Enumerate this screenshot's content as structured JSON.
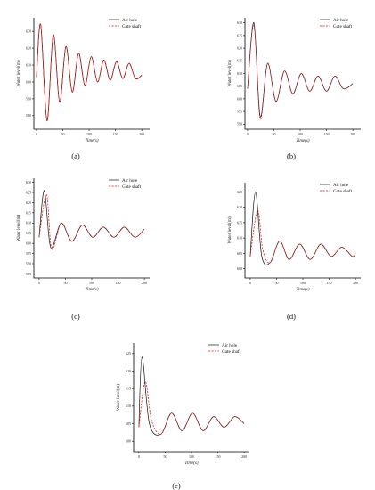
{
  "chart_data": [
    {
      "type": "line",
      "panel_label": "(a)",
      "xlabel": "Time(s)",
      "ylabel": "Water level(m)",
      "xlim": [
        -5,
        215
      ],
      "ylim": [
        572,
        638
      ],
      "xticks": [
        0,
        50,
        100,
        150,
        200
      ],
      "yticks": [
        580,
        590,
        600,
        610,
        620,
        630
      ],
      "legend_position": "top-right",
      "series": [
        {
          "name": "Air hole",
          "style": "solid",
          "color": "#111111",
          "x": [
            0,
            8,
            20,
            32,
            44,
            56,
            68,
            80,
            92,
            104,
            116,
            128,
            140,
            152,
            164,
            176,
            188,
            200
          ],
          "y": [
            603,
            634,
            577,
            628,
            588,
            621,
            594,
            617,
            598,
            615,
            600,
            613,
            601,
            612,
            602,
            611,
            602,
            604
          ]
        },
        {
          "name": "Gate shaft",
          "style": "dashed",
          "color": "#d42020",
          "x": [
            0,
            8,
            20,
            32,
            44,
            56,
            68,
            80,
            92,
            104,
            116,
            128,
            140,
            152,
            164,
            176,
            188,
            200
          ],
          "y": [
            603,
            634,
            577,
            628,
            588,
            621,
            594,
            617,
            598,
            615,
            600,
            613,
            601,
            612,
            602,
            611,
            602,
            604
          ]
        }
      ]
    },
    {
      "type": "line",
      "panel_label": "(b)",
      "xlabel": "Time(s)",
      "ylabel": "Water level(m)",
      "xlim": [
        -5,
        215
      ],
      "ylim": [
        588,
        632
      ],
      "xticks": [
        0,
        50,
        100,
        150,
        200
      ],
      "yticks": [
        590,
        595,
        600,
        605,
        610,
        615,
        620,
        625,
        630
      ],
      "legend_position": "top-right",
      "series": [
        {
          "name": "Air hole",
          "style": "solid",
          "color": "#111111",
          "x": [
            0,
            12,
            24,
            38,
            54,
            70,
            86,
            102,
            118,
            134,
            150,
            166,
            182,
            200
          ],
          "y": [
            604,
            630,
            593,
            614,
            599,
            611,
            602,
            610,
            603,
            609,
            603,
            609,
            604,
            606
          ]
        },
        {
          "name": "Gate shaft",
          "style": "dashed",
          "color": "#d42020",
          "x": [
            0,
            12,
            24,
            38,
            54,
            70,
            86,
            102,
            118,
            134,
            150,
            166,
            182,
            200
          ],
          "y": [
            604,
            629,
            592,
            614,
            599,
            611,
            602,
            610,
            603,
            609,
            603,
            609,
            604,
            606
          ]
        }
      ]
    },
    {
      "type": "line",
      "panel_label": "(c)",
      "xlabel": "Time(s)",
      "ylabel": "Water level(m)",
      "xlim": [
        -10,
        210
      ],
      "ylim": [
        583,
        632
      ],
      "xticks": [
        0,
        50,
        100,
        150,
        200
      ],
      "yticks": [
        585,
        590,
        595,
        600,
        605,
        610,
        615,
        620,
        625,
        630
      ],
      "legend_position": "top-right",
      "series": [
        {
          "name": "Air hole",
          "style": "solid",
          "color": "#111111",
          "x": [
            0,
            10,
            22,
            42,
            62,
            82,
            102,
            122,
            142,
            162,
            182,
            200
          ],
          "y": [
            603,
            626,
            598,
            610,
            601,
            609,
            603,
            608,
            603,
            608,
            603,
            607
          ]
        },
        {
          "name": "Gate shaft",
          "style": "dashed",
          "color": "#d42020",
          "x": [
            0,
            14,
            24,
            42,
            62,
            82,
            102,
            122,
            142,
            162,
            182,
            200
          ],
          "y": [
            603,
            624,
            597,
            610,
            601,
            609,
            603,
            608,
            603,
            608,
            603,
            607
          ]
        }
      ]
    },
    {
      "type": "line",
      "panel_label": "(d)",
      "xlabel": "Time(s)",
      "ylabel": "Water level(m)",
      "xlim": [
        -10,
        210
      ],
      "ylim": [
        597,
        628
      ],
      "xticks": [
        0,
        50,
        100,
        150,
        200
      ],
      "yticks": [
        600,
        605,
        610,
        615,
        620,
        625
      ],
      "legend_position": "top-right",
      "series": [
        {
          "name": "Air hole",
          "style": "solid",
          "color": "#111111",
          "x": [
            0,
            10,
            22,
            38,
            56,
            74,
            94,
            114,
            134,
            154,
            174,
            194,
            200
          ],
          "y": [
            604,
            625,
            604,
            602,
            609,
            603,
            608,
            603,
            608,
            604,
            607,
            604,
            605
          ]
        },
        {
          "name": "Gate shaft",
          "style": "dashed",
          "color": "#d42020",
          "x": [
            0,
            14,
            24,
            38,
            56,
            74,
            94,
            114,
            134,
            154,
            174,
            194,
            200
          ],
          "y": [
            604,
            619,
            606,
            602,
            609,
            603,
            608,
            603,
            608,
            604,
            607,
            604,
            605
          ]
        }
      ]
    },
    {
      "type": "line",
      "panel_label": "(e)",
      "xlabel": "Time(s)",
      "ylabel": "Water level(m)",
      "xlim": [
        -10,
        210
      ],
      "ylim": [
        597,
        628
      ],
      "xticks": [
        0,
        50,
        100,
        150,
        200
      ],
      "yticks": [
        600,
        605,
        610,
        615,
        620,
        625
      ],
      "legend_position": "top-right",
      "series": [
        {
          "name": "Air hole",
          "style": "solid",
          "color": "#111111",
          "x": [
            0,
            6,
            20,
            42,
            62,
            82,
            102,
            122,
            142,
            162,
            182,
            200
          ],
          "y": [
            604,
            624,
            605,
            602,
            608,
            603,
            608,
            603,
            607,
            604,
            607,
            605
          ]
        },
        {
          "name": "Gate shaft",
          "style": "dashed",
          "color": "#d42020",
          "x": [
            0,
            12,
            24,
            42,
            62,
            82,
            102,
            122,
            142,
            162,
            182,
            200
          ],
          "y": [
            604,
            617,
            606,
            602,
            608,
            603,
            608,
            603,
            607,
            604,
            607,
            605
          ]
        }
      ]
    }
  ]
}
